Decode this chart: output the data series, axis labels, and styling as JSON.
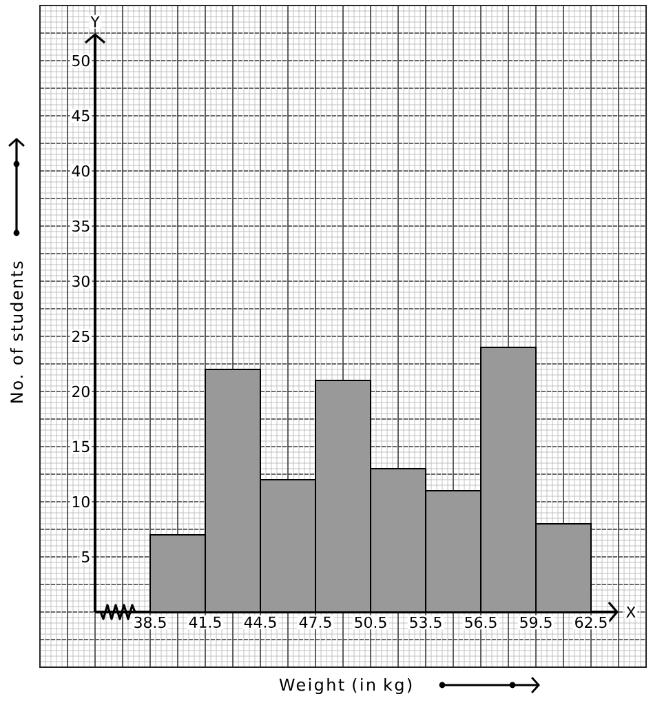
{
  "chart_data": {
    "type": "histogram",
    "xlabel": "Weight (in kg)",
    "ylabel": "No. of students",
    "bins": [
      38.5,
      41.5,
      44.5,
      47.5,
      50.5,
      53.5,
      56.5,
      59.5,
      62.5
    ],
    "values": [
      7,
      22,
      12,
      21,
      13,
      11,
      24,
      8
    ],
    "color": "#999999",
    "xlim": [
      35.5,
      64
    ],
    "ylim": [
      0,
      52.5
    ],
    "xticks": [
      38.5,
      41.5,
      44.5,
      47.5,
      50.5,
      53.5,
      56.5,
      59.5,
      62.5
    ],
    "yticks": [
      5,
      10,
      15,
      20,
      25,
      30,
      35,
      40,
      45,
      50
    ],
    "grid": true,
    "annotations": [
      "Y",
      "X"
    ]
  }
}
